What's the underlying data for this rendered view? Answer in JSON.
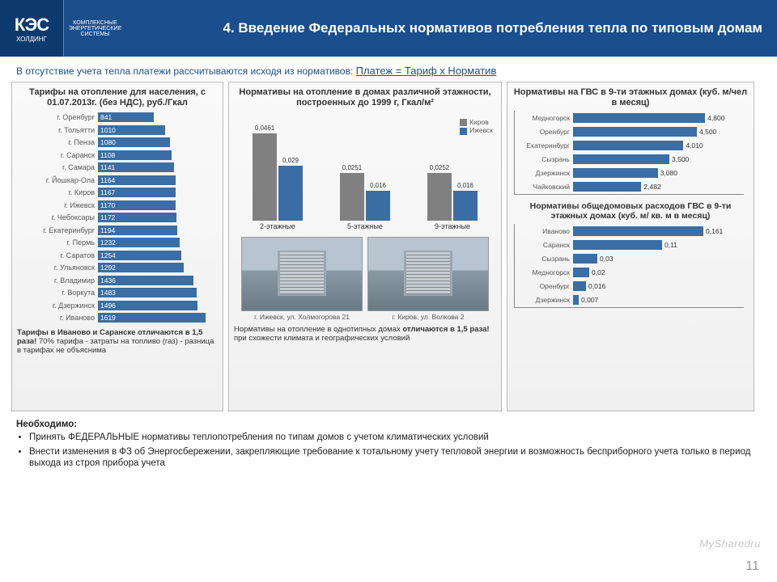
{
  "logo": {
    "main": "КЭС",
    "sub": "ХОЛДИНГ",
    "sub2": "КОМПЛЕКСНЫЕ ЭНЕРГЕТИЧЕСКИЕ СИСТЕМЫ"
  },
  "title": "4. Введение Федеральных нормативов потребления тепла по типовым домам",
  "subtitle_pre": "В отсутствие учета тепла платежи рассчитываются исходя из нормативов: ",
  "subtitle_formula": "Платеж = Тариф х Норматив",
  "panel1": {
    "title": "Тарифы на отопление для населения, с 01.07.2013г. (без НДС), руб./Гкал",
    "max": 1700,
    "bar_color": "#3a6ea5",
    "text_color": "#ffffff",
    "items": [
      {
        "label": "г. Оренбург",
        "v": 841
      },
      {
        "label": "г. Тольятти",
        "v": 1010
      },
      {
        "label": "г. Пенза",
        "v": 1080
      },
      {
        "label": "г. Саранск",
        "v": 1108
      },
      {
        "label": "г. Самара",
        "v": 1141
      },
      {
        "label": "г. Йошкар-Ола",
        "v": 1164
      },
      {
        "label": "г. Киров",
        "v": 1167
      },
      {
        "label": "г. Ижевск",
        "v": 1170
      },
      {
        "label": "г. Чебоксары",
        "v": 1172
      },
      {
        "label": "г. Екатеринбург",
        "v": 1194
      },
      {
        "label": "г. Пермь",
        "v": 1232
      },
      {
        "label": "г. Саратов",
        "v": 1254
      },
      {
        "label": "г. Ульяновск",
        "v": 1292
      },
      {
        "label": "г. Владимир",
        "v": 1436
      },
      {
        "label": "г. Воркута",
        "v": 1483
      },
      {
        "label": "г. Дзержинск",
        "v": 1496
      },
      {
        "label": "г. Иваново",
        "v": 1619
      }
    ],
    "note_bold": "Тарифы в Иваново и Саранске отличаются в 1,5 раза!",
    "note_rest": " 70% тарифа - затраты на топливо (газ) - разница в тарифах не объяснима"
  },
  "panel2": {
    "title": "Нормативы на отопление в домах различной этажности, построенных до 1999 г, Гкал/м²",
    "series": [
      {
        "name": "Киров",
        "color": "#808080"
      },
      {
        "name": "Ижевск",
        "color": "#3a6ea5"
      }
    ],
    "max": 0.05,
    "groups": [
      {
        "label": "2-этажные",
        "v": [
          0.0461,
          0.029
        ],
        "disp": [
          "0,0461",
          "0,029"
        ]
      },
      {
        "label": "5-этажные",
        "v": [
          0.0251,
          0.016
        ],
        "disp": [
          "0,0251",
          "0,016"
        ]
      },
      {
        "label": "9-этажные",
        "v": [
          0.0252,
          0.016
        ],
        "disp": [
          "0,0252",
          "0,016"
        ]
      }
    ],
    "photo1_caption": "г. Ижевск, ул. Холмогорова 21",
    "photo2_caption": "г. Киров, ул. Волкова 2",
    "note_pre": "Нормативы на отопление в однотипных домах ",
    "note_bold": "отличаются в 1,5 раза!",
    "note_rest": " при схожести климата и географических условий"
  },
  "panel3": {
    "title1": "Нормативы на ГВС в 9-ти этажных домах (куб. м/чел в месяц)",
    "chart1": {
      "max": 5.0,
      "color": "#3a6ea5",
      "items": [
        {
          "label": "Медногорск",
          "v": 4.8,
          "disp": "4,800"
        },
        {
          "label": "Оренбург",
          "v": 4.5,
          "disp": "4,500"
        },
        {
          "label": "Екатеринбург",
          "v": 4.01,
          "disp": "4,010"
        },
        {
          "label": "Сызрань",
          "v": 3.5,
          "disp": "3,500"
        },
        {
          "label": "Дзержинск",
          "v": 3.08,
          "disp": "3,080"
        },
        {
          "label": "Чайковский",
          "v": 2.482,
          "disp": "2,482"
        }
      ]
    },
    "title2": "Нормативы общедомовых расходов ГВС в 9-ти этажных домах (куб. м/ кв. м в месяц)",
    "chart2": {
      "max": 0.17,
      "color": "#3a6ea5",
      "items": [
        {
          "label": "Иваново",
          "v": 0.161,
          "disp": "0,161"
        },
        {
          "label": "Саранск",
          "v": 0.11,
          "disp": "0,11"
        },
        {
          "label": "Сызрань",
          "v": 0.03,
          "disp": "0,03"
        },
        {
          "label": "Медногорск",
          "v": 0.02,
          "disp": "0,02"
        },
        {
          "label": "Оренбург",
          "v": 0.016,
          "disp": "0,016"
        },
        {
          "label": "Дзержинск",
          "v": 0.007,
          "disp": "0,007"
        }
      ]
    }
  },
  "footer": {
    "heading": "Необходимо:",
    "bullets": [
      "Принять ФЕДЕРАЛЬНЫЕ нормативы теплопотребления по типам домов с учетом климатических условий",
      "Внести изменения в ФЗ об Энергосбережении, закрепляющие требование к тотальному учету тепловой энергии и возможность бесприборного учета только в период выхода из строя прибора учета"
    ]
  },
  "page_number": "11",
  "watermark": "MySharedru"
}
